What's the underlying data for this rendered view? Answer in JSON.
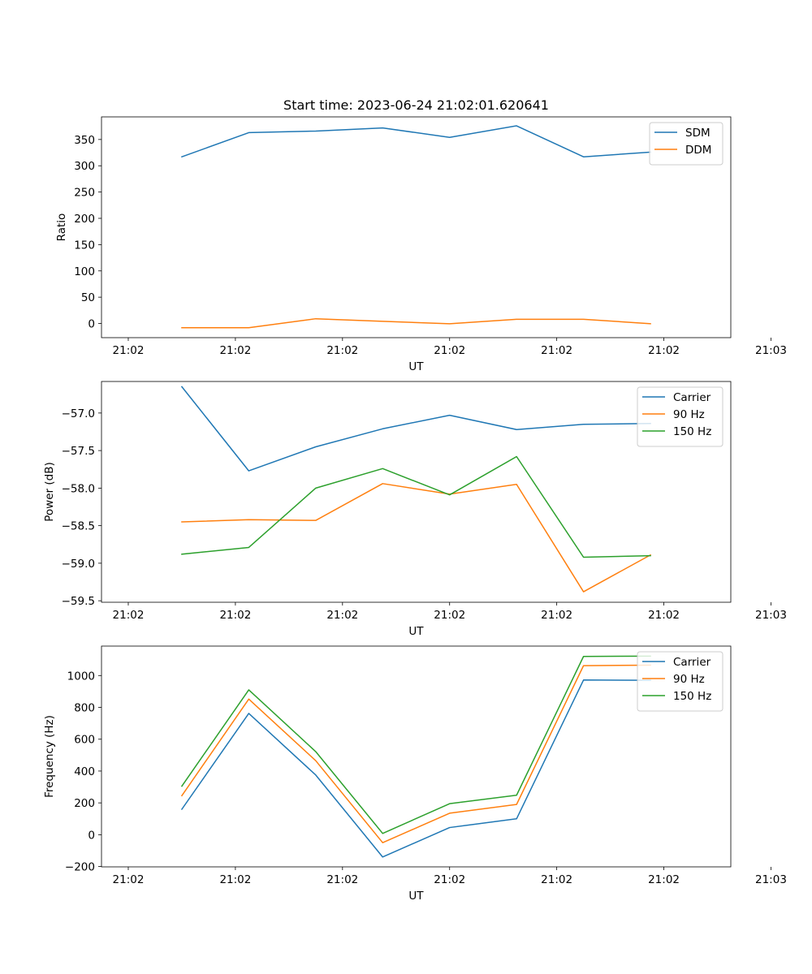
{
  "chart_data": [
    {
      "type": "line",
      "title": "Start time: 2023-06-24 21:02:01.620641",
      "xlabel": "UT",
      "ylabel": "Ratio",
      "x": [
        1,
        2,
        3,
        4,
        5,
        6,
        7,
        8
      ],
      "xlim": [
        -0.2,
        9.2
      ],
      "x_ticks": [
        0.2,
        1.8,
        3.4,
        5.0,
        6.6,
        8.2,
        9.8
      ],
      "x_tick_labels": [
        "21:02",
        "21:02",
        "21:02",
        "21:02",
        "21:02",
        "21:02",
        "21:03"
      ],
      "ylim": [
        -27,
        393
      ],
      "y_ticks": [
        0,
        50,
        100,
        150,
        200,
        250,
        300,
        350
      ],
      "y_tick_labels": [
        "0",
        "50",
        "100",
        "150",
        "200",
        "250",
        "300",
        "350"
      ],
      "grid": false,
      "legend_position": "top-right",
      "series": [
        {
          "name": "SDM",
          "color": "#1f77b4",
          "values": [
            317,
            363,
            366,
            372,
            354,
            376,
            317,
            326
          ]
        },
        {
          "name": "DDM",
          "color": "#ff7f0e",
          "values": [
            -8,
            -8,
            9,
            4,
            -0.5,
            8,
            8,
            -0.5
          ]
        }
      ]
    },
    {
      "type": "line",
      "title": "",
      "xlabel": "UT",
      "ylabel": "Power (dB)",
      "x": [
        1,
        2,
        3,
        4,
        5,
        6,
        7,
        8
      ],
      "xlim": [
        -0.2,
        9.2
      ],
      "x_ticks": [
        0.2,
        1.8,
        3.4,
        5.0,
        6.6,
        8.2,
        9.8
      ],
      "x_tick_labels": [
        "21:02",
        "21:02",
        "21:02",
        "21:02",
        "21:02",
        "21:02",
        "21:03"
      ],
      "ylim": [
        -59.52,
        -56.58
      ],
      "y_ticks": [
        -59.5,
        -59.0,
        -58.5,
        -58.0,
        -57.5,
        -57.0
      ],
      "y_tick_labels": [
        "−59.5",
        "−59.0",
        "−58.5",
        "−58.0",
        "−57.5",
        "−57.0"
      ],
      "grid": false,
      "legend_position": "top-right",
      "series": [
        {
          "name": "Carrier",
          "color": "#1f77b4",
          "values": [
            -56.65,
            -57.77,
            -57.45,
            -57.21,
            -57.03,
            -57.22,
            -57.15,
            -57.14
          ]
        },
        {
          "name": "90 Hz",
          "color": "#ff7f0e",
          "values": [
            -58.45,
            -58.42,
            -58.43,
            -57.94,
            -58.08,
            -57.95,
            -59.38,
            -58.89
          ]
        },
        {
          "name": "150 Hz",
          "color": "#2ca02c",
          "values": [
            -58.88,
            -58.79,
            -58.0,
            -57.74,
            -58.09,
            -57.58,
            -58.92,
            -58.9
          ]
        }
      ]
    },
    {
      "type": "line",
      "title": "",
      "xlabel": "UT",
      "ylabel": "Frequency (Hz)",
      "x": [
        1,
        2,
        3,
        4,
        5,
        6,
        7,
        8
      ],
      "xlim": [
        -0.2,
        9.2
      ],
      "x_ticks": [
        0.2,
        1.8,
        3.4,
        5.0,
        6.6,
        8.2,
        9.8
      ],
      "x_tick_labels": [
        "21:02",
        "21:02",
        "21:02",
        "21:02",
        "21:02",
        "21:02",
        "21:03"
      ],
      "ylim": [
        -202,
        1185
      ],
      "y_ticks": [
        -200,
        0,
        200,
        400,
        600,
        800,
        1000
      ],
      "y_tick_labels": [
        "−200",
        "0",
        "200",
        "400",
        "600",
        "800",
        "1000"
      ],
      "grid": false,
      "legend_position": "top-right",
      "series": [
        {
          "name": "Carrier",
          "color": "#1f77b4",
          "values": [
            160,
            762,
            375,
            -140,
            45,
            100,
            972,
            970
          ]
        },
        {
          "name": "90 Hz",
          "color": "#ff7f0e",
          "values": [
            245,
            852,
            465,
            -50,
            135,
            190,
            1062,
            1065
          ]
        },
        {
          "name": "150 Hz",
          "color": "#2ca02c",
          "values": [
            305,
            910,
            522,
            8,
            195,
            248,
            1120,
            1122
          ]
        }
      ]
    }
  ]
}
